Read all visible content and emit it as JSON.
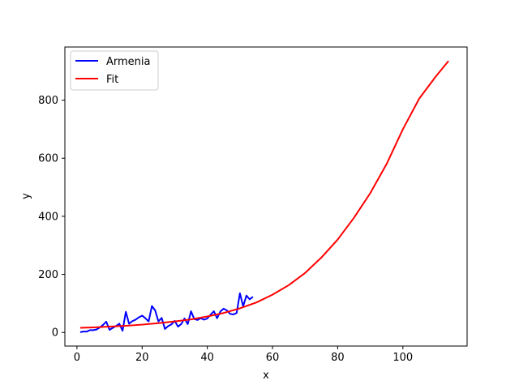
{
  "chart_data": {
    "type": "line",
    "title": "",
    "xlabel": "x",
    "ylabel": "y",
    "xlim": [
      -3.7,
      119.7
    ],
    "ylim": [
      -46.8,
      983.0
    ],
    "xticks": [
      0,
      20,
      40,
      60,
      80,
      100
    ],
    "yticks": [
      0,
      200,
      400,
      600,
      800
    ],
    "grid": false,
    "legend_position": "top-left",
    "series": [
      {
        "name": "Armenia",
        "color": "#0000ff",
        "x": [
          1,
          2,
          3,
          4,
          5,
          6,
          7,
          8,
          9,
          10,
          11,
          12,
          13,
          14,
          15,
          16,
          17,
          18,
          19,
          20,
          21,
          22,
          23,
          24,
          25,
          26,
          27,
          28,
          29,
          30,
          31,
          32,
          33,
          34,
          35,
          36,
          37,
          38,
          39,
          40,
          41,
          42,
          43,
          44,
          45,
          46,
          47,
          48,
          49,
          50,
          51,
          52,
          53,
          54
        ],
        "y": [
          1,
          3,
          3,
          8,
          8,
          10,
          17,
          26,
          37,
          9,
          16,
          22,
          30,
          6,
          71,
          30,
          39,
          44,
          52,
          58,
          49,
          38,
          91,
          76,
          38,
          50,
          12,
          22,
          28,
          40,
          20,
          29,
          48,
          29,
          73,
          46,
          43,
          49,
          44,
          48,
          61,
          73,
          49,
          72,
          82,
          76,
          64,
          62,
          67,
          135,
          90,
          127,
          114,
          123
        ]
      },
      {
        "name": "Fit",
        "color": "#ff0000",
        "x": [
          1,
          5,
          10,
          15,
          20,
          25,
          30,
          35,
          40,
          45,
          50,
          55,
          60,
          65,
          70,
          75,
          80,
          85,
          90,
          95,
          100,
          105,
          110,
          114
        ],
        "y": [
          16,
          17.5,
          20,
          23,
          27,
          32,
          38,
          45,
          55,
          67,
          83,
          103,
          130,
          163,
          205,
          258,
          320,
          395,
          480,
          580,
          700,
          805,
          880,
          935
        ]
      }
    ]
  }
}
